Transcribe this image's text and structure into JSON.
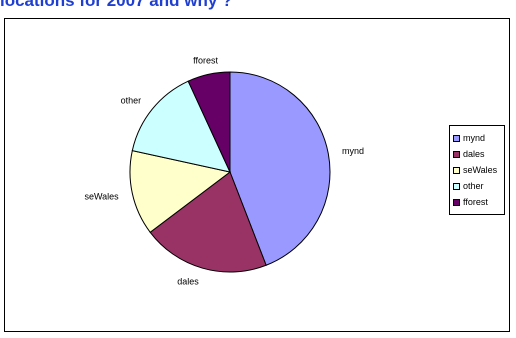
{
  "chart_data": {
    "type": "pie",
    "title": "locations for 2007 and why ?",
    "slices": [
      {
        "name": "mynd",
        "value": 45,
        "color": "#9999ff"
      },
      {
        "name": "dales",
        "value": 21,
        "color": "#993366"
      },
      {
        "name": "seWales",
        "value": 14,
        "color": "#ffffcc"
      },
      {
        "name": "other",
        "value": 15,
        "color": "#ccffff"
      },
      {
        "name": "fforest",
        "value": 7,
        "color": "#660066"
      }
    ],
    "legend_position": "right"
  }
}
